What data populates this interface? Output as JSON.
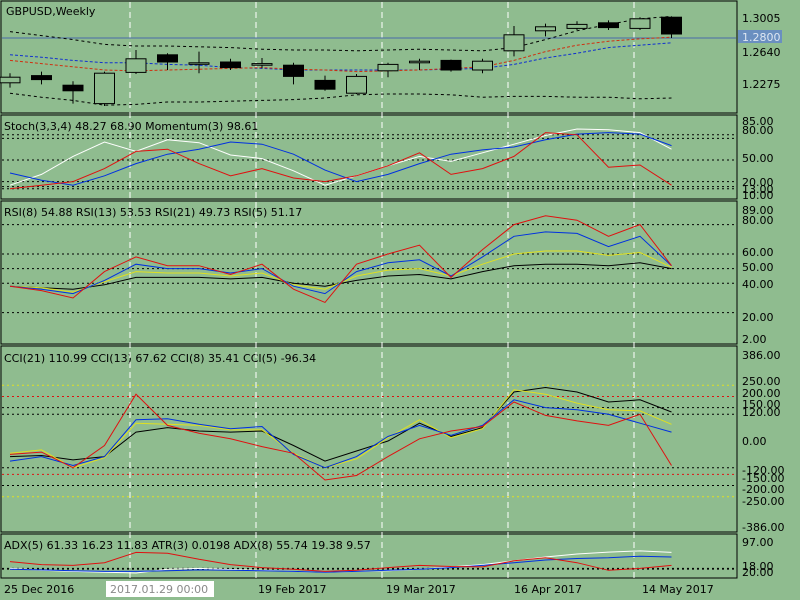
{
  "colors": {
    "bg": "#8fbc8f",
    "grid": "#e8ecd8",
    "border": "#000000",
    "bull": "#ffffff",
    "bear": "#000000",
    "price_line": "#4060a0",
    "price_label_bg": "#6a8fc0"
  },
  "main": {
    "title": "GBPUSD,Weekly",
    "y_ticks": [
      "1.3005",
      "1.2640",
      "1.2275"
    ],
    "current_price": "1.2800"
  },
  "stoch": {
    "label": "Stoch(3,3,4) 48.27 68.90 Momentum(3) 98.61",
    "ticks": [
      "85.00",
      "80.00",
      "50.00",
      "20.00",
      "13.00",
      "10.00"
    ]
  },
  "rsi": {
    "label": "RSI(8) 54.88 RSI(13) 53.53 RSI(21) 49.73 RSI(5) 51.17",
    "ticks": [
      "89.00",
      "80.00",
      "60.00",
      "50.00",
      "40.00",
      "20.00",
      "2.00"
    ]
  },
  "cci": {
    "label": "CCI(21) 110.99 CCI(13) 67.62 CCI(8) 35.41 CCI(5) -96.34",
    "ticks": [
      "386.00",
      "250.00",
      "200.00",
      "150.00",
      "120.00",
      "0.00",
      "-120.00",
      "-150.00",
      "-200.00",
      "-250.00",
      "-386.00"
    ]
  },
  "adx": {
    "label": "ADX(5) 61.33 16.23 11.83 ATR(3) 0.0198 ADX(8) 55.74 19.38 9.57",
    "ticks": [
      "97.00",
      "18.00",
      "20.00"
    ]
  },
  "x_axis": {
    "labels": [
      "25 Dec 2016",
      "2017.01.29 00:00",
      "19 Feb 2017",
      "19 Mar 2017",
      "16 Apr 2017",
      "14 May 2017"
    ]
  },
  "chart_data": {
    "type": "candlestick",
    "title": "GBPUSD,Weekly",
    "ylim": [
      1.19,
      1.32
    ],
    "candles": [
      {
        "o": 1.224,
        "h": 1.236,
        "l": 1.218,
        "c": 1.231
      },
      {
        "o": 1.233,
        "h": 1.238,
        "l": 1.222,
        "c": 1.228
      },
      {
        "o": 1.221,
        "h": 1.226,
        "l": 1.198,
        "c": 1.214
      },
      {
        "o": 1.198,
        "h": 1.238,
        "l": 1.195,
        "c": 1.236
      },
      {
        "o": 1.237,
        "h": 1.265,
        "l": 1.235,
        "c": 1.254
      },
      {
        "o": 1.259,
        "h": 1.261,
        "l": 1.24,
        "c": 1.25
      },
      {
        "o": 1.249,
        "h": 1.263,
        "l": 1.236,
        "c": 1.249
      },
      {
        "o": 1.25,
        "h": 1.254,
        "l": 1.24,
        "c": 1.243
      },
      {
        "o": 1.246,
        "h": 1.255,
        "l": 1.242,
        "c": 1.248
      },
      {
        "o": 1.246,
        "h": 1.249,
        "l": 1.222,
        "c": 1.232
      },
      {
        "o": 1.227,
        "h": 1.233,
        "l": 1.214,
        "c": 1.216
      },
      {
        "o": 1.211,
        "h": 1.235,
        "l": 1.21,
        "c": 1.232
      },
      {
        "o": 1.239,
        "h": 1.249,
        "l": 1.231,
        "c": 1.247
      },
      {
        "o": 1.249,
        "h": 1.254,
        "l": 1.24,
        "c": 1.251
      },
      {
        "o": 1.252,
        "h": 1.253,
        "l": 1.238,
        "c": 1.24
      },
      {
        "o": 1.24,
        "h": 1.254,
        "l": 1.236,
        "c": 1.251
      },
      {
        "o": 1.264,
        "h": 1.295,
        "l": 1.257,
        "c": 1.284
      },
      {
        "o": 1.289,
        "h": 1.298,
        "l": 1.282,
        "c": 1.294
      },
      {
        "o": 1.292,
        "h": 1.301,
        "l": 1.29,
        "c": 1.297
      },
      {
        "o": 1.299,
        "h": 1.302,
        "l": 1.29,
        "c": 1.293
      },
      {
        "o": 1.292,
        "h": 1.306,
        "l": 1.29,
        "c": 1.304
      },
      {
        "o": 1.306,
        "h": 1.307,
        "l": 1.28,
        "c": 1.285
      }
    ],
    "ma_upper": [
      1.288,
      1.283,
      1.278,
      1.272,
      1.27,
      1.27,
      1.269,
      1.268,
      1.266,
      1.265,
      1.265,
      1.264,
      1.265,
      1.266,
      1.265,
      1.264,
      1.268,
      1.278,
      1.289,
      1.297,
      1.304,
      1.307
    ],
    "ma_lower": [
      1.211,
      1.206,
      1.202,
      1.196,
      1.197,
      1.2,
      1.2,
      1.201,
      1.202,
      1.203,
      1.205,
      1.209,
      1.21,
      1.21,
      1.209,
      1.206,
      1.207,
      1.207,
      1.206,
      1.206,
      1.204,
      1.205
    ],
    "ma_blue": [
      1.259,
      1.256,
      1.252,
      1.249,
      1.249,
      1.247,
      1.246,
      1.243,
      1.242,
      1.24,
      1.24,
      1.24,
      1.24,
      1.24,
      1.241,
      1.242,
      1.247,
      1.255,
      1.261,
      1.268,
      1.271,
      1.274
    ],
    "ma_red": [
      1.252,
      1.248,
      1.244,
      1.24,
      1.239,
      1.24,
      1.241,
      1.242,
      1.243,
      1.241,
      1.24,
      1.238,
      1.239,
      1.24,
      1.242,
      1.244,
      1.252,
      1.263,
      1.271,
      1.276,
      1.279,
      1.281
    ],
    "stoch": {
      "white": [
        15,
        30,
        55,
        75,
        62,
        78,
        74,
        57,
        52,
        35,
        15,
        28,
        42,
        55,
        48,
        60,
        72,
        84,
        93,
        92,
        88,
        65
      ],
      "blue": [
        32,
        22,
        15,
        28,
        45,
        58,
        65,
        75,
        72,
        58,
        36,
        20,
        30,
        45,
        58,
        64,
        68,
        78,
        86,
        88,
        86,
        70
      ],
      "red": [
        10,
        15,
        20,
        38,
        62,
        65,
        45,
        28,
        38,
        25,
        20,
        28,
        42,
        60,
        30,
        38,
        55,
        88,
        85,
        40,
        43,
        15
      ]
    },
    "rsi": {
      "red": [
        38,
        35,
        30,
        48,
        58,
        52,
        52,
        46,
        53,
        36,
        27,
        53,
        60,
        66,
        44,
        63,
        80,
        86,
        83,
        72,
        80,
        52
      ],
      "blue": [
        38,
        36,
        33,
        42,
        53,
        50,
        50,
        47,
        50,
        38,
        33,
        48,
        54,
        56,
        45,
        58,
        72,
        75,
        74,
        65,
        72,
        52
      ],
      "yellow": [
        38,
        37,
        34,
        41,
        48,
        47,
        47,
        45,
        47,
        39,
        36,
        45,
        49,
        50,
        45,
        53,
        60,
        62,
        62,
        59,
        61,
        51
      ],
      "black": [
        38,
        37,
        36,
        39,
        44,
        44,
        44,
        43,
        44,
        40,
        38,
        42,
        45,
        46,
        43,
        48,
        52,
        53,
        53,
        52,
        54,
        50
      ]
    },
    "cci": {
      "red": [
        -60,
        -50,
        -120,
        -20,
        210,
        70,
        35,
        10,
        -25,
        -55,
        -175,
        -155,
        -70,
        10,
        45,
        65,
        175,
        115,
        90,
        70,
        120,
        -110
      ],
      "blue": [
        -90,
        -70,
        -110,
        -70,
        95,
        100,
        75,
        55,
        65,
        -60,
        -120,
        -70,
        20,
        70,
        25,
        70,
        185,
        150,
        140,
        120,
        80,
        40
      ],
      "yellow": [
        -55,
        -40,
        -120,
        -75,
        80,
        75,
        70,
        50,
        50,
        -55,
        -120,
        -80,
        15,
        95,
        15,
        55,
        230,
        210,
        170,
        140,
        135,
        75
      ],
      "black": [
        -70,
        -65,
        -85,
        -70,
        40,
        60,
        45,
        40,
        45,
        -20,
        -90,
        -45,
        0,
        80,
        20,
        60,
        220,
        240,
        220,
        175,
        185,
        130
      ]
    },
    "adx": {
      "white": [
        20,
        15,
        12,
        10,
        8,
        18,
        20,
        17,
        15,
        12,
        10,
        12,
        14,
        18,
        24,
        30,
        40,
        50,
        58,
        63,
        66,
        62
      ],
      "blue": [
        18,
        16,
        14,
        12,
        12,
        14,
        16,
        15,
        14,
        12,
        10,
        12,
        15,
        18,
        22,
        28,
        35,
        42,
        46,
        48,
        52,
        50
      ],
      "red": [
        38,
        30,
        28,
        35,
        62,
        60,
        44,
        30,
        22,
        18,
        12,
        15,
        22,
        28,
        25,
        24,
        40,
        48,
        35,
        15,
        20,
        28
      ]
    }
  }
}
